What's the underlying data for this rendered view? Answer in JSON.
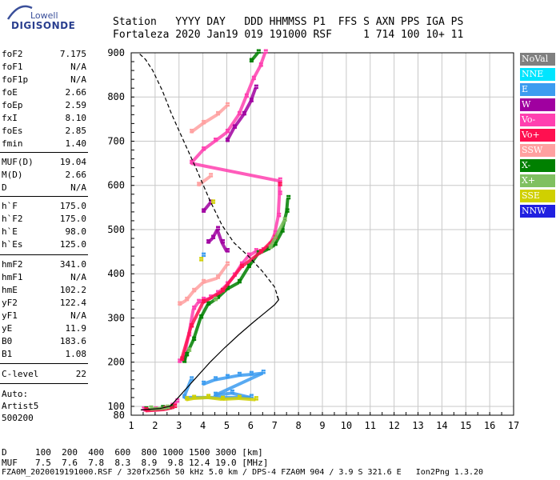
{
  "logo": {
    "top": "Lowell",
    "bottom": "DIGISONDE"
  },
  "header": {
    "line1": "Station   YYYY DAY   DDD HHMMSS P1  FFS S AXN PPS IGA PS",
    "line2": "Fortaleza 2020 Jan19 019 191000 RSF     1 714 100 10+ 11"
  },
  "params": [
    {
      "label": "foF2",
      "value": "7.175"
    },
    {
      "label": "foF1",
      "value": "N/A"
    },
    {
      "label": "foF1p",
      "value": "N/A"
    },
    {
      "label": "foE",
      "value": "2.66"
    },
    {
      "label": "foEp",
      "value": "2.59"
    },
    {
      "label": "fxI",
      "value": "8.10"
    },
    {
      "label": "foEs",
      "value": "2.85"
    },
    {
      "label": "fmin",
      "value": "1.40"
    },
    {
      "label": "MUF(D)",
      "value": "19.04"
    },
    {
      "label": "M(D)",
      "value": "2.66"
    },
    {
      "label": "D",
      "value": "N/A"
    },
    {
      "label": "h`F",
      "value": "175.0"
    },
    {
      "label": "h`F2",
      "value": "175.0"
    },
    {
      "label": "h`E",
      "value": "98.0"
    },
    {
      "label": "h`Es",
      "value": "125.0"
    },
    {
      "label": "hmF2",
      "value": "341.0"
    },
    {
      "label": "hmF1",
      "value": "N/A"
    },
    {
      "label": "hmE",
      "value": "102.2"
    },
    {
      "label": "yF2",
      "value": "122.4"
    },
    {
      "label": "yF1",
      "value": "N/A"
    },
    {
      "label": "yE",
      "value": "11.9"
    },
    {
      "label": "B0",
      "value": "183.6"
    },
    {
      "label": "B1",
      "value": "1.08"
    },
    {
      "label": "C-level",
      "value": "22"
    }
  ],
  "autoscale": {
    "line1": "Auto:",
    "line2": "Artist5",
    "line3": "500200"
  },
  "muf_table": {
    "d_label": "D",
    "d_values": "100  200  400  600  800 1000 1500 3000 [km]",
    "muf_label": "MUF",
    "muf_values": "7.5  7.6  7.8  8.3  8.9  9.8 12.4 19.0 [MHz]"
  },
  "footer": "FZA0M_2020019191000.RSF / 320fx256h 50 kHz 5.0 km / DPS-4 FZA0M 904 / 3.9 S 321.6 E   Ion2Png 1.3.20",
  "legend": [
    {
      "label": "NoVal",
      "color": "#808080"
    },
    {
      "label": "NNE",
      "color": "#00e5ff"
    },
    {
      "label": "E",
      "color": "#3c9cf0"
    },
    {
      "label": "W",
      "color": "#a000a0"
    },
    {
      "label": "Vo-",
      "color": "#ff40b0"
    },
    {
      "label": "Vo+",
      "color": "#ff1050"
    },
    {
      "label": "SSW",
      "color": "#ffa0a0"
    },
    {
      "label": "X-",
      "color": "#008000"
    },
    {
      "label": "X+",
      "color": "#80c060"
    },
    {
      "label": "SSE",
      "color": "#d0d000"
    },
    {
      "label": "NNW",
      "color": "#2020e0"
    }
  ],
  "chart_data": {
    "type": "scatter",
    "xlim": [
      1,
      17
    ],
    "ylim": [
      80,
      900
    ],
    "x_ticks": [
      1,
      2,
      3,
      4,
      5,
      6,
      7,
      8,
      9,
      10,
      11,
      12,
      13,
      14,
      15,
      16,
      17
    ],
    "y_ticks": [
      100,
      200,
      300,
      400,
      500,
      600,
      700,
      800,
      900
    ],
    "grid": true,
    "series": [
      {
        "name": "Vo-",
        "color": "#ff40b0",
        "points": [
          [
            1.5,
            92
          ],
          [
            2.0,
            92
          ],
          [
            2.5,
            95
          ],
          [
            2.7,
            100
          ],
          [
            2.9,
            110
          ],
          [
            3.0,
            200
          ],
          [
            3.2,
            210
          ],
          [
            3.4,
            260
          ],
          [
            3.6,
            320
          ],
          [
            3.8,
            335
          ],
          [
            4.0,
            340
          ],
          [
            4.3,
            345
          ],
          [
            4.6,
            355
          ],
          [
            5.0,
            375
          ],
          [
            5.3,
            395
          ],
          [
            5.6,
            420
          ],
          [
            5.9,
            440
          ],
          [
            6.2,
            450
          ],
          [
            6.5,
            452
          ],
          [
            6.8,
            465
          ],
          [
            7.0,
            490
          ],
          [
            7.15,
            530
          ],
          [
            7.2,
            580
          ],
          [
            7.2,
            610
          ],
          [
            3.5,
            650
          ],
          [
            4.0,
            680
          ],
          [
            4.5,
            700
          ],
          [
            5.0,
            720
          ],
          [
            5.5,
            760
          ],
          [
            5.8,
            800
          ],
          [
            6.1,
            840
          ],
          [
            6.4,
            870
          ],
          [
            6.6,
            900
          ]
        ]
      },
      {
        "name": "X-",
        "color": "#008000",
        "points": [
          [
            1.6,
            92
          ],
          [
            2.3,
            95
          ],
          [
            2.7,
            97
          ],
          [
            3.2,
            200
          ],
          [
            3.3,
            215
          ],
          [
            3.6,
            250
          ],
          [
            3.9,
            300
          ],
          [
            4.2,
            330
          ],
          [
            4.6,
            345
          ],
          [
            5.0,
            365
          ],
          [
            5.5,
            380
          ],
          [
            5.9,
            415
          ],
          [
            6.3,
            445
          ],
          [
            6.7,
            455
          ],
          [
            7.0,
            465
          ],
          [
            7.3,
            495
          ],
          [
            7.5,
            540
          ],
          [
            7.55,
            570
          ],
          [
            6.0,
            880
          ],
          [
            6.3,
            900
          ]
        ]
      },
      {
        "name": "W",
        "color": "#a000a0",
        "points": [
          [
            4.2,
            470
          ],
          [
            4.4,
            480
          ],
          [
            4.6,
            500
          ],
          [
            4.8,
            470
          ],
          [
            5.0,
            450
          ],
          [
            4.0,
            540
          ],
          [
            4.3,
            560
          ],
          [
            5.0,
            700
          ],
          [
            5.3,
            730
          ],
          [
            5.7,
            760
          ],
          [
            6.0,
            790
          ],
          [
            6.2,
            820
          ]
        ]
      },
      {
        "name": "E",
        "color": "#3c9cf0",
        "points": [
          [
            4.0,
            150
          ],
          [
            4.5,
            160
          ],
          [
            5.0,
            165
          ],
          [
            5.5,
            170
          ],
          [
            6.0,
            172
          ],
          [
            6.5,
            175
          ],
          [
            4.5,
            125
          ],
          [
            5.2,
            130
          ],
          [
            6.0,
            120
          ],
          [
            3.2,
            120
          ],
          [
            3.5,
            160
          ],
          [
            4.0,
            440
          ]
        ]
      },
      {
        "name": "SSW",
        "color": "#ffa0a0",
        "points": [
          [
            3.0,
            330
          ],
          [
            3.3,
            340
          ],
          [
            3.6,
            360
          ],
          [
            4.0,
            380
          ],
          [
            4.6,
            390
          ],
          [
            5.0,
            420
          ],
          [
            3.5,
            720
          ],
          [
            4.0,
            740
          ],
          [
            4.6,
            760
          ],
          [
            5.0,
            780
          ],
          [
            3.8,
            600
          ],
          [
            4.3,
            620
          ]
        ]
      },
      {
        "name": "SSE",
        "color": "#d0d000",
        "points": [
          [
            3.3,
            115
          ],
          [
            3.6,
            118
          ],
          [
            4.2,
            120
          ],
          [
            4.8,
            116
          ],
          [
            5.5,
            118
          ],
          [
            6.2,
            115
          ],
          [
            3.9,
            430
          ],
          [
            4.4,
            560
          ]
        ]
      },
      {
        "name": "Vo+",
        "color": "#ff1050",
        "points": [
          [
            1.6,
            90
          ],
          [
            2.4,
            93
          ],
          [
            2.8,
            98
          ],
          [
            3.1,
            205
          ],
          [
            3.5,
            280
          ],
          [
            4.0,
            335
          ],
          [
            4.8,
            360
          ],
          [
            5.6,
            415
          ],
          [
            6.4,
            448
          ],
          [
            7.0,
            480
          ],
          [
            7.2,
            600
          ]
        ]
      },
      {
        "name": "X+",
        "color": "#80c060",
        "points": [
          [
            1.8,
            94
          ],
          [
            2.5,
            96
          ],
          [
            3.4,
            225
          ],
          [
            4.5,
            340
          ],
          [
            6.8,
            458
          ],
          [
            7.4,
            520
          ]
        ]
      }
    ],
    "profile_lines": [
      {
        "style": "solid",
        "points": [
          [
            1.4,
            92
          ],
          [
            2.2,
            95
          ],
          [
            2.6,
            100
          ],
          [
            2.66,
            102
          ],
          [
            2.8,
            110
          ],
          [
            3.0,
            122
          ],
          [
            3.3,
            140
          ],
          [
            3.8,
            170
          ],
          [
            4.3,
            200
          ],
          [
            4.9,
            232
          ],
          [
            5.5,
            262
          ],
          [
            6.1,
            290
          ],
          [
            6.6,
            312
          ],
          [
            7.0,
            330
          ],
          [
            7.17,
            341
          ],
          [
            7.1,
            350
          ]
        ]
      },
      {
        "style": "dashed",
        "points": [
          [
            7.17,
            341
          ],
          [
            7.0,
            370
          ],
          [
            6.5,
            405
          ],
          [
            5.9,
            440
          ],
          [
            5.3,
            470
          ],
          [
            4.8,
            510
          ],
          [
            4.3,
            565
          ],
          [
            3.7,
            640
          ],
          [
            3.2,
            700
          ],
          [
            2.7,
            760
          ],
          [
            2.3,
            815
          ],
          [
            1.9,
            860
          ],
          [
            1.6,
            885
          ],
          [
            1.3,
            900
          ]
        ]
      }
    ]
  }
}
